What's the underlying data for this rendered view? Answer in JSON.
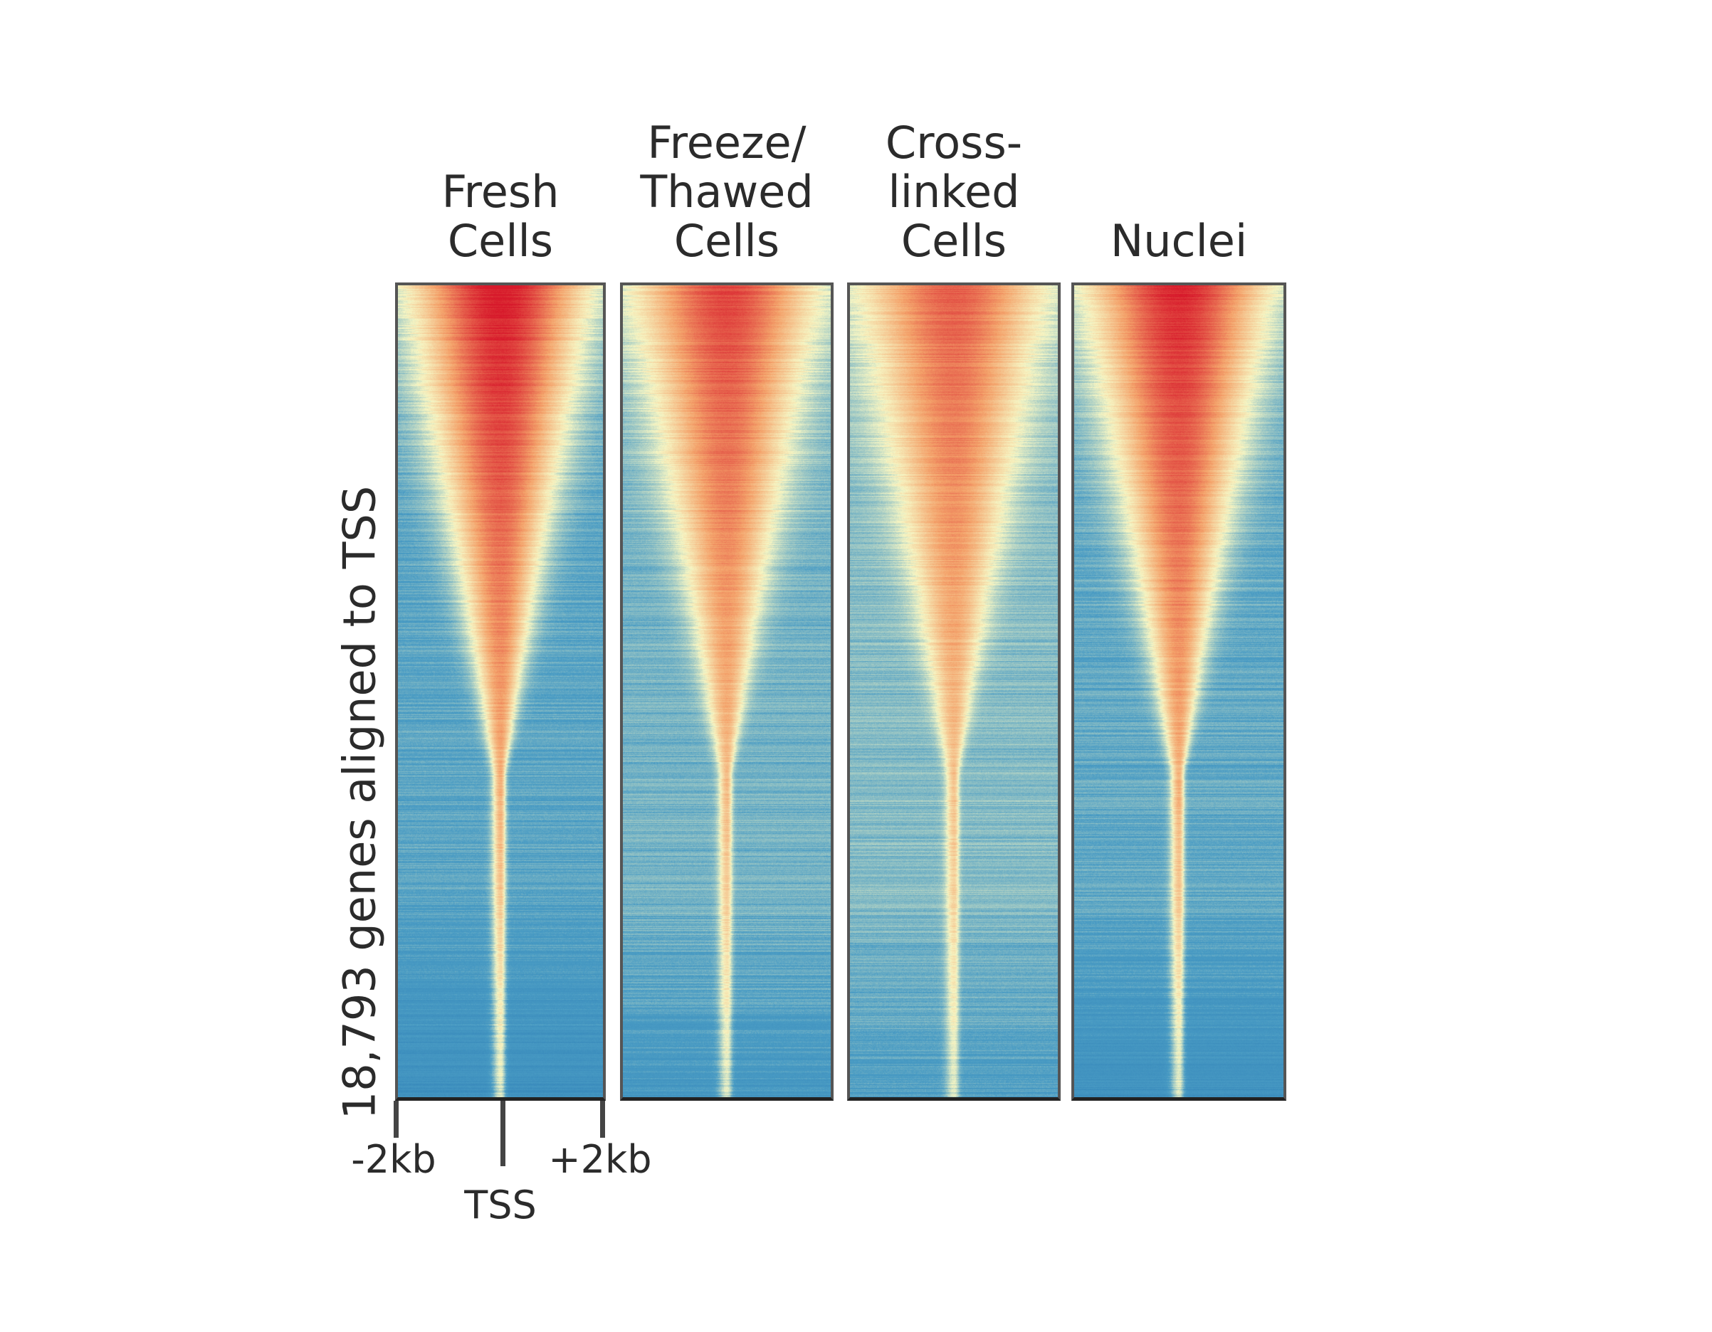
{
  "chart_data": {
    "type": "heatmap",
    "panels": [
      {
        "title": "Fresh\nCells",
        "contrast": 1.0
      },
      {
        "title": "Freeze/\nThawed\nCells",
        "contrast": 0.82
      },
      {
        "title": "Cross-\nlinked\nCells",
        "contrast": 0.72
      },
      {
        "title": "Nuclei",
        "contrast": 0.95
      }
    ],
    "ylabel": "18,793 genes aligned to TSS",
    "x_ticks": [
      "-2kb",
      "TSS",
      "+2kb"
    ],
    "x_range_kb": [
      -2,
      2
    ],
    "n_genes": 18793,
    "colormap": [
      "#1f6fb0",
      "#4a9cc4",
      "#f6f6c4",
      "#f4a26a",
      "#d7192b"
    ],
    "sort": "descending signal at TSS"
  }
}
